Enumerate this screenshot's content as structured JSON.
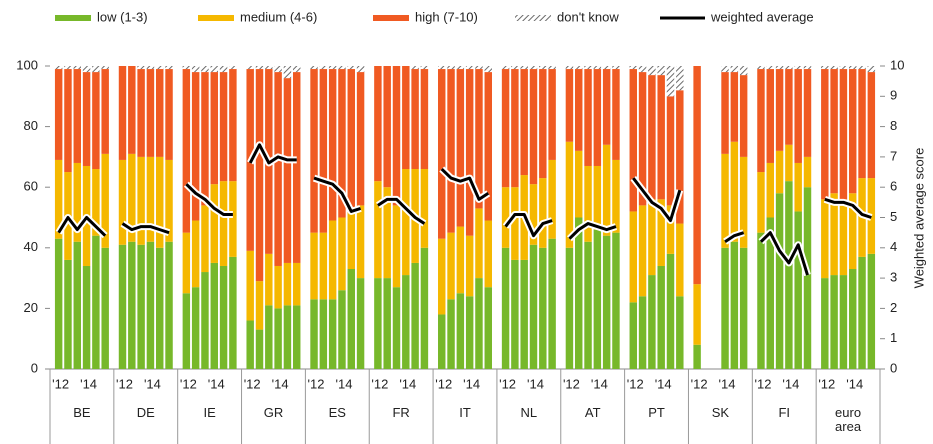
{
  "chart_data": {
    "type": "grouped_stacked_bar",
    "groups": [
      "BE",
      "DE",
      "IE",
      "GR",
      "ES",
      "FR",
      "IT",
      "NL",
      "AT",
      "PT",
      "SK",
      "FI",
      "euro area"
    ],
    "periods": [
      "'12",
      null,
      null,
      "'14",
      null,
      null
    ],
    "ylim": [
      0,
      100
    ],
    "yticks": [
      0,
      20,
      40,
      60,
      80,
      100
    ],
    "y2lim": [
      0,
      10
    ],
    "y2ticks": [
      0,
      1,
      2,
      3,
      4,
      5,
      6,
      7,
      8,
      9,
      10
    ],
    "y2label": "Weighted average score",
    "series": [
      {
        "name": "low (1-3)",
        "color": "#77b82a",
        "values": [
          [
            43,
            36,
            42,
            34,
            44,
            40
          ],
          [
            41,
            42,
            41,
            42,
            40,
            42
          ],
          [
            25,
            27,
            32,
            35,
            34,
            37
          ],
          [
            16,
            13,
            21,
            20,
            21,
            21
          ],
          [
            23,
            23,
            23,
            26,
            33,
            30
          ],
          [
            30,
            30,
            27,
            31,
            35,
            40
          ],
          [
            18,
            23,
            25,
            24,
            30,
            27
          ],
          [
            40,
            36,
            36,
            41,
            40,
            43
          ],
          [
            40,
            50,
            42,
            46,
            44,
            45
          ],
          [
            22,
            24,
            31,
            34,
            38,
            24
          ],
          [
            8,
            null,
            null,
            40,
            42,
            40
          ],
          [
            45,
            50,
            58,
            62,
            52,
            60
          ],
          [
            30,
            31,
            31,
            33,
            37,
            38
          ]
        ]
      },
      {
        "name": "medium (4-6)",
        "color": "#f5b800",
        "values": [
          [
            26,
            29,
            26,
            33,
            22,
            31
          ],
          [
            28,
            29,
            29,
            28,
            30,
            27
          ],
          [
            20,
            22,
            22,
            26,
            28,
            25
          ],
          [
            23,
            16,
            17,
            14,
            14,
            14
          ],
          [
            22,
            22,
            26,
            24,
            19,
            24
          ],
          [
            32,
            30,
            27,
            35,
            31,
            26
          ],
          [
            25,
            22,
            22,
            20,
            23,
            22
          ],
          [
            20,
            24,
            28,
            20,
            23,
            26
          ],
          [
            35,
            22,
            25,
            21,
            30,
            24
          ],
          [
            30,
            30,
            25,
            22,
            16,
            24
          ],
          [
            20,
            null,
            null,
            31,
            33,
            30
          ],
          [
            20,
            18,
            14,
            12,
            16,
            10
          ],
          [
            26,
            27,
            25,
            25,
            26,
            25
          ]
        ]
      },
      {
        "name": "high (7-10)",
        "color": "#f05a22",
        "values": [
          [
            30,
            34,
            31,
            31,
            32,
            28
          ],
          [
            31,
            29,
            29,
            29,
            29,
            30
          ],
          [
            54,
            49,
            44,
            37,
            36,
            37
          ],
          [
            60,
            70,
            61,
            64,
            61,
            63
          ],
          [
            54,
            54,
            50,
            49,
            47,
            44
          ],
          [
            38,
            40,
            46,
            34,
            33,
            33
          ],
          [
            56,
            54,
            52,
            55,
            46,
            49
          ],
          [
            39,
            39,
            35,
            38,
            36,
            30
          ],
          [
            24,
            27,
            32,
            32,
            25,
            30
          ],
          [
            47,
            44,
            41,
            41,
            36,
            44
          ],
          [
            72,
            null,
            null,
            27,
            23,
            27
          ],
          [
            34,
            31,
            27,
            25,
            31,
            29
          ],
          [
            43,
            41,
            43,
            41,
            36,
            35
          ]
        ]
      },
      {
        "name": "don't know",
        "color": "#6b6b6b",
        "pattern": "hatch",
        "values": [
          [
            1,
            1,
            1,
            2,
            2,
            1
          ],
          [
            0,
            0,
            1,
            1,
            1,
            1
          ],
          [
            1,
            2,
            2,
            2,
            2,
            1
          ],
          [
            1,
            1,
            1,
            2,
            4,
            2
          ],
          [
            1,
            1,
            1,
            1,
            1,
            2
          ],
          [
            0,
            0,
            0,
            0,
            1,
            1
          ],
          [
            1,
            1,
            1,
            1,
            1,
            2
          ],
          [
            1,
            1,
            1,
            1,
            1,
            1
          ],
          [
            1,
            1,
            1,
            1,
            1,
            1
          ],
          [
            1,
            2,
            3,
            3,
            10,
            8
          ],
          [
            0,
            null,
            null,
            2,
            2,
            3
          ],
          [
            1,
            1,
            1,
            1,
            1,
            1
          ],
          [
            1,
            1,
            1,
            1,
            1,
            2
          ]
        ]
      },
      {
        "name": "weighted average",
        "color": "#000000",
        "axis": "y2",
        "values": [
          [
            4.5,
            5.0,
            4.6,
            5.0,
            4.7,
            4.4
          ],
          [
            4.8,
            4.6,
            4.7,
            4.7,
            4.6,
            4.5
          ],
          [
            6.1,
            5.8,
            5.6,
            5.3,
            5.1,
            5.1
          ],
          [
            6.8,
            7.4,
            6.8,
            7.0,
            6.9,
            6.9
          ],
          [
            6.3,
            6.2,
            6.1,
            5.8,
            5.2,
            5.3
          ],
          [
            5.4,
            5.6,
            5.6,
            5.3,
            5.0,
            4.8
          ],
          [
            6.6,
            6.3,
            6.2,
            6.3,
            5.6,
            5.8
          ],
          [
            4.7,
            5.1,
            5.1,
            4.4,
            4.8,
            4.9
          ],
          [
            4.3,
            4.6,
            4.8,
            4.7,
            4.6,
            4.7
          ],
          [
            6.3,
            5.9,
            5.5,
            5.3,
            4.9,
            5.9
          ],
          [
            7.7,
            null,
            null,
            4.2,
            4.4,
            4.5
          ],
          [
            4.2,
            4.5,
            3.9,
            3.5,
            4.1,
            3.1
          ],
          [
            5.6,
            5.5,
            5.5,
            5.4,
            5.1,
            5.0
          ]
        ]
      }
    ]
  }
}
